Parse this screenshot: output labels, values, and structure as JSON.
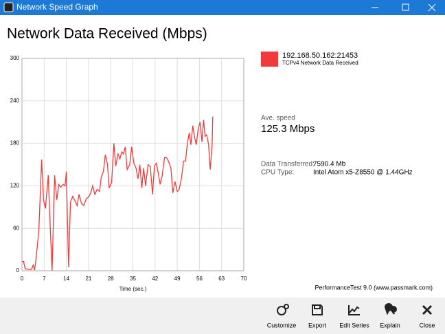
{
  "window": {
    "title": "Network Speed Graph"
  },
  "chart_data": {
    "type": "line",
    "title": "Network Data Received (Mbps)",
    "x_label": "Time (sec.)",
    "x": [
      0,
      0.5,
      1,
      2,
      3,
      3.5,
      4,
      4.5,
      5.3,
      6.2,
      6.8,
      7.4,
      8.3,
      8.8,
      9.5,
      10.3,
      11,
      11.6,
      12.2,
      13,
      13.6,
      14,
      14.7,
      15.3,
      16,
      16.6,
      17.4,
      18,
      18.8,
      19.5,
      20.3,
      21,
      21.7,
      22.3,
      23,
      23.7,
      24.5,
      25,
      25.7,
      26.3,
      27,
      27.5,
      28.3,
      29,
      29.6,
      30.3,
      30.9,
      31.5,
      32,
      32.6,
      33.2,
      34,
      34.6,
      35.3,
      36,
      36.6,
      37.2,
      37.8,
      38.4,
      39,
      39.8,
      40.5,
      41.2,
      41.8,
      42.4,
      43,
      43.6,
      44.2,
      45,
      45.6,
      46.2,
      47,
      47.6,
      48.3,
      49,
      49.6,
      50.3,
      51,
      51.6,
      52.2,
      52.8,
      53.3,
      53.9,
      54.4,
      55,
      55.6,
      56.2,
      56.8,
      57.3,
      57.8,
      58.3,
      58.9,
      59.4,
      60,
      60.2
    ],
    "series": [
      {
        "name": "192.168.50.162:21453",
        "description": "TCPv4 Network Data Received",
        "color": "#f23a3a",
        "values": [
          13,
          13,
          3,
          2,
          2,
          8,
          1,
          20,
          55,
          157,
          100,
          88,
          135,
          75,
          0,
          135,
          100,
          122,
          118,
          122,
          120,
          140,
          5,
          97,
          105,
          100,
          92,
          108,
          95,
          92,
          102,
          104,
          110,
          120,
          108,
          115,
          112,
          132,
          140,
          164,
          150,
          117,
          125,
          180,
          148,
          165,
          158,
          168,
          165,
          175,
          143,
          150,
          175,
          152,
          145,
          130,
          150,
          117,
          145,
          120,
          150,
          147,
          108,
          148,
          152,
          138,
          122,
          133,
          160,
          160,
          155,
          145,
          110,
          126,
          112,
          115,
          130,
          155,
          155,
          180,
          195,
          178,
          205,
          190,
          178,
          200,
          210,
          182,
          213,
          190,
          192,
          178,
          143,
          178,
          218
        ]
      }
    ],
    "xlim": [
      0,
      70
    ],
    "xticks": [
      0,
      7,
      14,
      21,
      28,
      35,
      42,
      49,
      56,
      63,
      70
    ],
    "ylim": [
      0,
      300
    ],
    "yticks": [
      0,
      60,
      120,
      180,
      240,
      300
    ],
    "grid": true
  },
  "stats": {
    "ave_label": "Ave. speed",
    "ave_value": "125.3 Mbps",
    "rows": [
      [
        "Data Transferred:",
        "7590.4 Mb"
      ],
      [
        "CPU Type:",
        "Intel Atom x5-Z8550 @ 1.44GHz"
      ]
    ]
  },
  "footer": "PerformanceTest 9.0 (www.passmark.com)",
  "toolbar": [
    "Customize",
    "Export",
    "Edit Series",
    "Explain",
    "Close"
  ]
}
